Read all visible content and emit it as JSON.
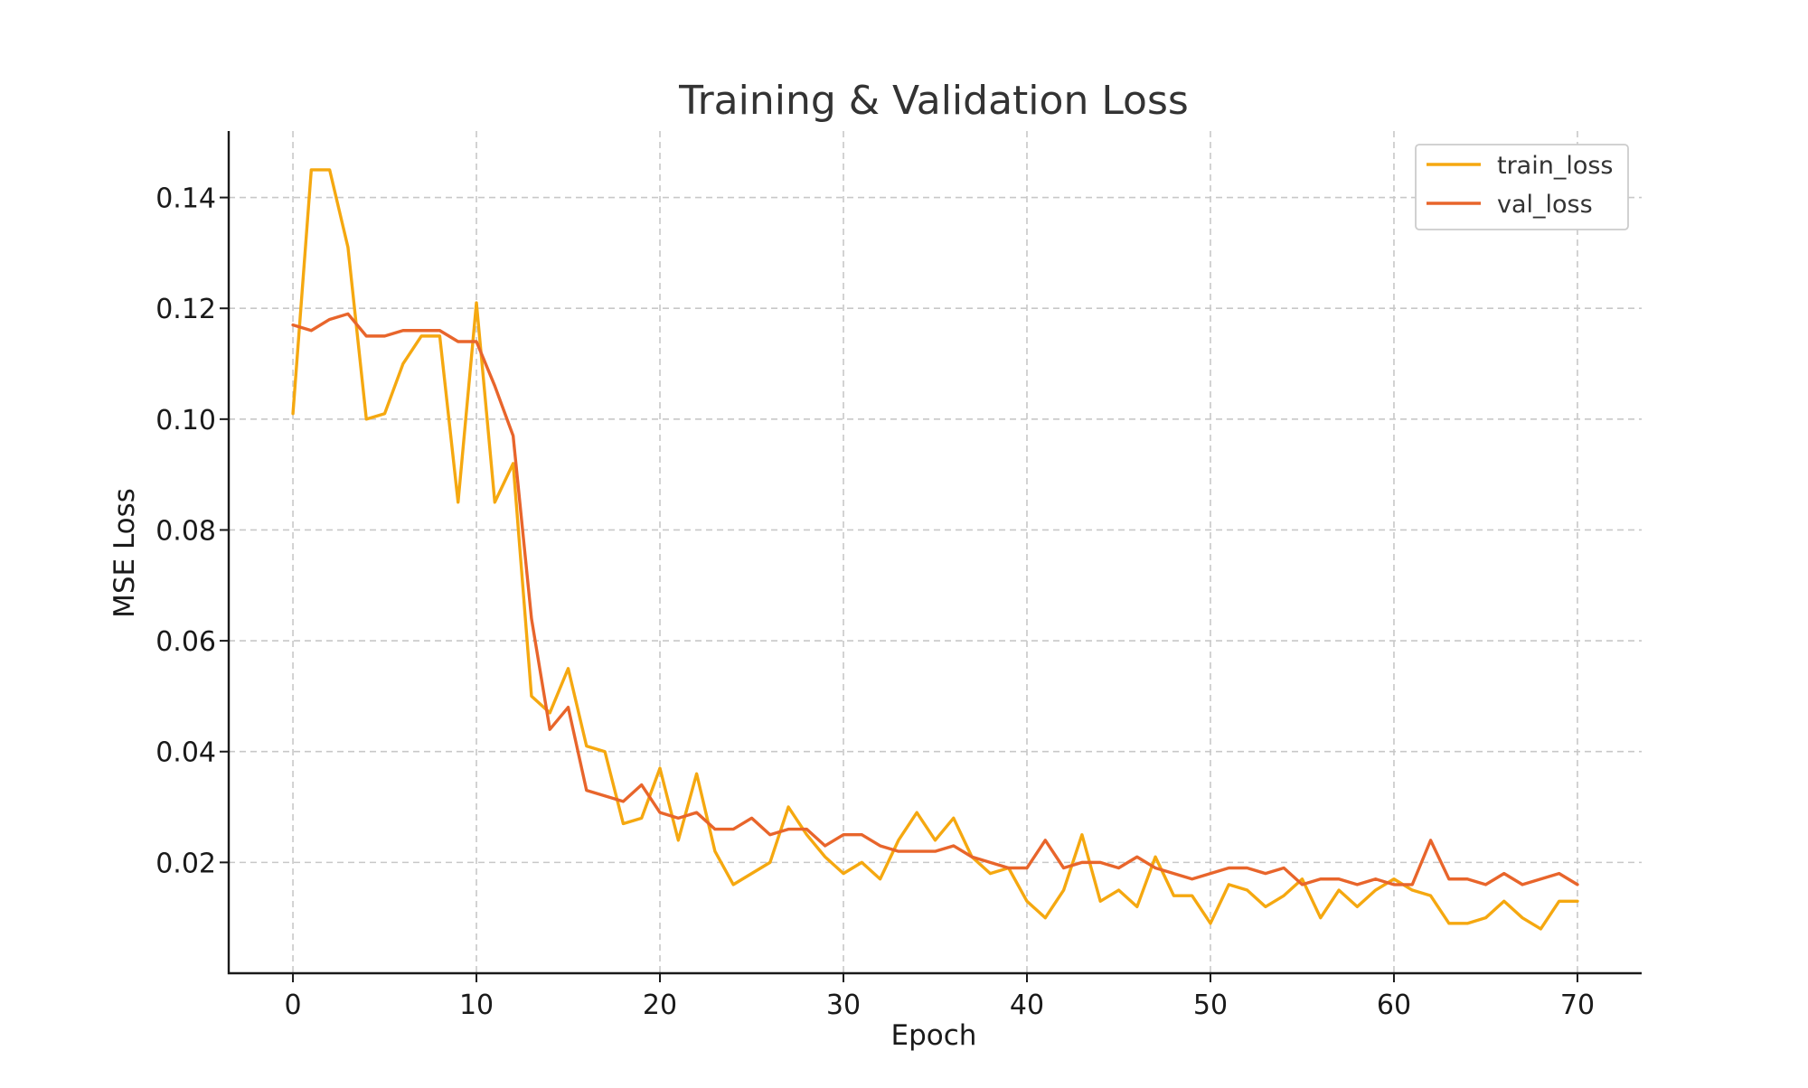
{
  "chart_data": {
    "type": "line",
    "title": "Training & Validation Loss",
    "xlabel": "Epoch",
    "ylabel": "MSE Loss",
    "xlim": [
      -3.5,
      73.5
    ],
    "ylim": [
      0,
      0.152
    ],
    "xticks": [
      0,
      10,
      20,
      30,
      40,
      50,
      60,
      70
    ],
    "yticks": [
      0.02,
      0.04,
      0.06,
      0.08,
      0.1,
      0.12,
      0.14
    ],
    "ytick_labels": [
      "0.02",
      "0.04",
      "0.06",
      "0.08",
      "0.10",
      "0.12",
      "0.14"
    ],
    "grid": true,
    "legend_position": "top-right",
    "x": [
      0,
      1,
      2,
      3,
      4,
      5,
      6,
      7,
      8,
      9,
      10,
      11,
      12,
      13,
      14,
      15,
      16,
      17,
      18,
      19,
      20,
      21,
      22,
      23,
      24,
      25,
      26,
      27,
      28,
      29,
      30,
      31,
      32,
      33,
      34,
      35,
      36,
      37,
      38,
      39,
      40,
      41,
      42,
      43,
      44,
      45,
      46,
      47,
      48,
      49,
      50,
      51,
      52,
      53,
      54,
      55,
      56,
      57,
      58,
      59,
      60,
      61,
      62,
      63,
      64,
      65,
      66,
      67,
      68,
      69,
      70
    ],
    "series": [
      {
        "name": "train_loss",
        "color": "#F5A810",
        "values": [
          0.101,
          0.145,
          0.145,
          0.131,
          0.1,
          0.101,
          0.11,
          0.115,
          0.115,
          0.085,
          0.121,
          0.085,
          0.092,
          0.05,
          0.047,
          0.055,
          0.041,
          0.04,
          0.027,
          0.028,
          0.037,
          0.024,
          0.036,
          0.022,
          0.016,
          0.018,
          0.02,
          0.03,
          0.025,
          0.021,
          0.018,
          0.02,
          0.017,
          0.024,
          0.029,
          0.024,
          0.028,
          0.021,
          0.018,
          0.019,
          0.013,
          0.01,
          0.015,
          0.025,
          0.013,
          0.015,
          0.012,
          0.021,
          0.014,
          0.014,
          0.009,
          0.016,
          0.015,
          0.012,
          0.014,
          0.017,
          0.01,
          0.015,
          0.012,
          0.015,
          0.017,
          0.015,
          0.014,
          0.009,
          0.009,
          0.01,
          0.013,
          0.01,
          0.008,
          0.013,
          0.013
        ]
      },
      {
        "name": "val_loss",
        "color": "#E8652B",
        "values": [
          0.117,
          0.116,
          0.118,
          0.119,
          0.115,
          0.115,
          0.116,
          0.116,
          0.116,
          0.114,
          0.114,
          0.106,
          0.097,
          0.064,
          0.044,
          0.048,
          0.033,
          0.032,
          0.031,
          0.034,
          0.029,
          0.028,
          0.029,
          0.026,
          0.026,
          0.028,
          0.025,
          0.026,
          0.026,
          0.023,
          0.025,
          0.025,
          0.023,
          0.022,
          0.022,
          0.022,
          0.023,
          0.021,
          0.02,
          0.019,
          0.019,
          0.024,
          0.019,
          0.02,
          0.02,
          0.019,
          0.021,
          0.019,
          0.018,
          0.017,
          0.018,
          0.019,
          0.019,
          0.018,
          0.019,
          0.016,
          0.017,
          0.017,
          0.016,
          0.017,
          0.016,
          0.016,
          0.024,
          0.017,
          0.017,
          0.016,
          0.018,
          0.016,
          0.017,
          0.018,
          0.016
        ]
      }
    ]
  }
}
